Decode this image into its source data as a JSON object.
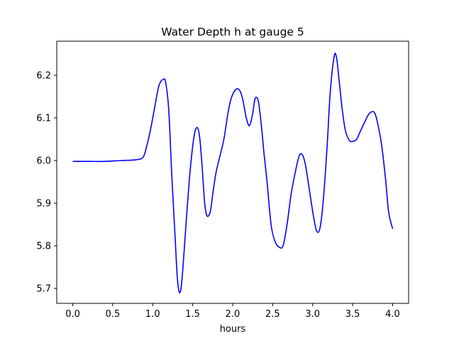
{
  "chart_data": {
    "type": "line",
    "title": "Water Depth h at gauge 5",
    "xlabel": "hours",
    "ylabel": "",
    "xlim": [
      -0.2,
      4.2
    ],
    "ylim": [
      5.665,
      6.28
    ],
    "xticks": [
      0.0,
      0.5,
      1.0,
      1.5,
      2.0,
      2.5,
      3.0,
      3.5,
      4.0
    ],
    "xtick_labels": [
      "0.0",
      "0.5",
      "1.0",
      "1.5",
      "2.0",
      "2.5",
      "3.0",
      "3.5",
      "4.0"
    ],
    "yticks": [
      5.7,
      5.8,
      5.9,
      6.0,
      6.1,
      6.2
    ],
    "ytick_labels": [
      "5.7",
      "5.8",
      "5.9",
      "6.0",
      "6.1",
      "6.2"
    ],
    "grid": false,
    "colors": {
      "line": "#0000ff",
      "axes": "#000000",
      "background": "#ffffff"
    },
    "series": [
      {
        "name": "",
        "x": [
          0.0,
          0.2,
          0.4,
          0.6,
          0.8,
          0.88,
          0.92,
          0.97,
          1.02,
          1.07,
          1.1,
          1.13,
          1.16,
          1.2,
          1.24,
          1.28,
          1.31,
          1.34,
          1.37,
          1.42,
          1.47,
          1.52,
          1.56,
          1.59,
          1.62,
          1.65,
          1.68,
          1.72,
          1.75,
          1.79,
          1.84,
          1.89,
          1.94,
          1.98,
          2.03,
          2.07,
          2.1,
          2.13,
          2.17,
          2.21,
          2.25,
          2.28,
          2.32,
          2.36,
          2.39,
          2.43,
          2.48,
          2.53,
          2.58,
          2.63,
          2.68,
          2.73,
          2.78,
          2.83,
          2.87,
          2.91,
          2.96,
          3.01,
          3.05,
          3.09,
          3.13,
          3.18,
          3.22,
          3.27,
          3.3,
          3.33,
          3.37,
          3.41,
          3.46,
          3.5,
          3.55,
          3.6,
          3.65,
          3.7,
          3.75,
          3.78,
          3.81,
          3.86,
          3.91,
          3.95,
          4.0
        ],
        "y": [
          5.998,
          5.998,
          5.998,
          6.0,
          6.002,
          6.008,
          6.03,
          6.07,
          6.12,
          6.17,
          6.185,
          6.19,
          6.185,
          6.12,
          5.96,
          5.82,
          5.72,
          5.69,
          5.73,
          5.86,
          5.98,
          6.06,
          6.077,
          6.05,
          5.98,
          5.9,
          5.87,
          5.88,
          5.92,
          5.97,
          6.01,
          6.05,
          6.11,
          6.145,
          6.165,
          6.168,
          6.16,
          6.14,
          6.1,
          6.082,
          6.11,
          6.145,
          6.14,
          6.08,
          6.02,
          5.95,
          5.85,
          5.81,
          5.797,
          5.8,
          5.85,
          5.92,
          5.97,
          6.01,
          6.014,
          5.99,
          5.93,
          5.87,
          5.835,
          5.84,
          5.9,
          6.03,
          6.16,
          6.245,
          6.24,
          6.19,
          6.12,
          6.07,
          6.047,
          6.045,
          6.05,
          6.07,
          6.09,
          6.108,
          6.115,
          6.11,
          6.09,
          6.04,
          5.96,
          5.88,
          5.84
        ]
      }
    ]
  }
}
